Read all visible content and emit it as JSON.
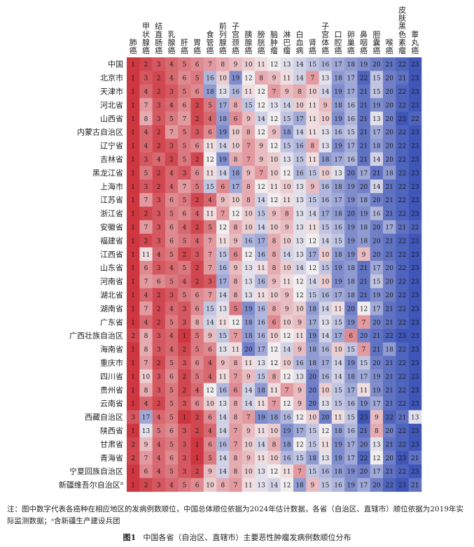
{
  "chart_data": {
    "type": "heatmap",
    "columns": [
      "肺癌",
      "甲状腺癌",
      "结直肠癌",
      "乳腺癌",
      "肝癌",
      "胃癌",
      "食管癌",
      "前列腺癌",
      "子宫颈癌",
      "胰腺癌",
      "膀胱癌",
      "脑肿瘤",
      "淋巴瘤",
      "白血病",
      "肾癌",
      "子宫体癌",
      "口腔癌",
      "卵巢癌",
      "鼻咽癌",
      "胆囊癌",
      "喉癌",
      "皮肤黑色素瘤",
      "睾丸癌"
    ],
    "rows": [
      "中国",
      "北京市",
      "天津市",
      "河北省",
      "山西省",
      "内蒙古自治区",
      "辽宁省",
      "吉林省",
      "黑龙江省",
      "上海市",
      "江苏省",
      "浙江省",
      "安徽省",
      "福建省",
      "江西省",
      "山东省",
      "河南省",
      "湖北省",
      "湖南省",
      "广东省",
      "广西壮族自治区",
      "海南省",
      "重庆市",
      "四川省",
      "贵州省",
      "云南省",
      "西藏自治区",
      "陕西省",
      "甘肃省",
      "青海省",
      "宁夏回族自治区",
      "新疆维吾尔自治区"
    ],
    "row_superscripts": {
      "新疆维吾尔自治区": "a"
    },
    "values": [
      [
        1,
        2,
        3,
        4,
        5,
        6,
        7,
        8,
        9,
        10,
        11,
        12,
        13,
        14,
        15,
        16,
        17,
        18,
        19,
        20,
        21,
        22,
        23
      ],
      [
        1,
        3,
        2,
        4,
        6,
        5,
        16,
        10,
        19,
        12,
        8,
        9,
        11,
        14,
        7,
        13,
        18,
        17,
        22,
        15,
        20,
        21,
        23
      ],
      [
        1,
        4,
        2,
        3,
        5,
        6,
        18,
        13,
        16,
        11,
        12,
        7,
        9,
        8,
        10,
        14,
        19,
        17,
        21,
        15,
        20,
        22,
        23
      ],
      [
        1,
        7,
        3,
        4,
        6,
        2,
        5,
        17,
        8,
        15,
        12,
        13,
        14,
        10,
        11,
        9,
        18,
        16,
        21,
        19,
        20,
        22,
        23
      ],
      [
        1,
        8,
        3,
        5,
        7,
        2,
        4,
        18,
        6,
        9,
        14,
        12,
        15,
        17,
        11,
        10,
        19,
        16,
        21,
        13,
        20,
        23,
        22
      ],
      [
        1,
        4,
        2,
        7,
        5,
        3,
        6,
        19,
        10,
        8,
        12,
        9,
        18,
        14,
        11,
        13,
        16,
        15,
        21,
        17,
        20,
        22,
        23
      ],
      [
        1,
        4,
        2,
        3,
        5,
        6,
        11,
        14,
        10,
        7,
        9,
        12,
        15,
        16,
        8,
        13,
        19,
        17,
        21,
        18,
        20,
        22,
        23
      ],
      [
        1,
        3,
        4,
        2,
        5,
        2,
        12,
        19,
        8,
        7,
        9,
        10,
        13,
        15,
        11,
        18,
        17,
        16,
        21,
        14,
        20,
        22,
        23
      ],
      [
        1,
        5,
        2,
        4,
        3,
        6,
        11,
        14,
        18,
        9,
        7,
        10,
        12,
        16,
        15,
        10,
        13,
        20,
        17,
        21,
        18,
        22,
        23
      ],
      [
        1,
        3,
        2,
        4,
        7,
        5,
        15,
        6,
        17,
        8,
        12,
        11,
        10,
        13,
        9,
        16,
        18,
        19,
        20,
        14,
        21,
        22,
        23
      ],
      [
        1,
        7,
        3,
        6,
        5,
        2,
        4,
        9,
        10,
        8,
        14,
        12,
        11,
        13,
        15,
        16,
        17,
        19,
        18,
        20,
        21,
        22,
        23
      ],
      [
        1,
        2,
        3,
        5,
        6,
        4,
        11,
        7,
        12,
        10,
        15,
        9,
        8,
        13,
        14,
        17,
        18,
        20,
        19,
        16,
        21,
        22,
        23
      ],
      [
        1,
        7,
        3,
        6,
        4,
        2,
        5,
        12,
        8,
        10,
        14,
        10,
        9,
        13,
        11,
        15,
        16,
        19,
        18,
        20,
        17,
        21,
        22
      ],
      [
        1,
        2,
        3,
        6,
        5,
        4,
        7,
        11,
        9,
        16,
        17,
        8,
        10,
        13,
        12,
        14,
        15,
        19,
        18,
        20,
        21,
        22,
        23
      ],
      [
        1,
        11,
        4,
        5,
        2,
        3,
        7,
        15,
        6,
        12,
        16,
        8,
        14,
        13,
        17,
        10,
        18,
        19,
        9,
        20,
        21,
        22,
        23
      ],
      [
        1,
        6,
        3,
        4,
        5,
        2,
        7,
        16,
        9,
        13,
        11,
        8,
        10,
        14,
        12,
        15,
        19,
        18,
        21,
        17,
        20,
        22,
        23
      ],
      [
        1,
        7,
        6,
        5,
        4,
        2,
        3,
        17,
        8,
        13,
        16,
        9,
        11,
        12,
        14,
        10,
        19,
        18,
        21,
        15,
        20,
        22,
        23
      ],
      [
        1,
        4,
        2,
        3,
        5,
        6,
        7,
        14,
        8,
        13,
        11,
        10,
        9,
        12,
        15,
        16,
        17,
        18,
        21,
        19,
        20,
        22,
        23
      ],
      [
        1,
        7,
        2,
        4,
        3,
        6,
        15,
        13,
        5,
        19,
        16,
        8,
        9,
        10,
        18,
        14,
        11,
        20,
        12,
        17,
        21,
        22,
        23
      ],
      [
        1,
        4,
        2,
        5,
        3,
        8,
        14,
        11,
        12,
        18,
        16,
        6,
        10,
        9,
        17,
        13,
        15,
        19,
        7,
        20,
        21,
        22,
        23
      ],
      [
        2,
        8,
        3,
        4,
        1,
        5,
        9,
        15,
        7,
        18,
        16,
        10,
        12,
        11,
        19,
        14,
        17,
        6,
        20,
        21,
        22,
        23,
        23
      ],
      [
        1,
        8,
        3,
        4,
        2,
        5,
        6,
        13,
        11,
        20,
        17,
        12,
        14,
        9,
        18,
        16,
        10,
        15,
        7,
        21,
        18,
        22,
        23
      ],
      [
        1,
        7,
        2,
        5,
        3,
        6,
        4,
        9,
        8,
        11,
        13,
        12,
        10,
        16,
        18,
        17,
        14,
        19,
        15,
        20,
        21,
        22,
        23
      ],
      [
        1,
        10,
        3,
        6,
        2,
        5,
        4,
        11,
        7,
        9,
        15,
        8,
        12,
        13,
        20,
        16,
        14,
        18,
        17,
        19,
        21,
        22,
        23
      ],
      [
        1,
        8,
        3,
        5,
        2,
        4,
        12,
        16,
        6,
        14,
        18,
        11,
        7,
        9,
        20,
        10,
        15,
        17,
        11,
        19,
        21,
        22,
        23
      ],
      [
        1,
        4,
        2,
        5,
        3,
        6,
        10,
        13,
        8,
        14,
        11,
        7,
        12,
        9,
        20,
        13,
        15,
        16,
        19,
        17,
        21,
        22,
        23
      ],
      [
        3,
        17,
        4,
        5,
        1,
        2,
        6,
        14,
        8,
        7,
        19,
        18,
        16,
        12,
        10,
        20,
        11,
        15,
        23,
        9,
        22,
        21,
        13
      ],
      [
        1,
        13,
        5,
        6,
        3,
        2,
        4,
        14,
        7,
        9,
        11,
        10,
        19,
        17,
        15,
        12,
        18,
        16,
        21,
        8,
        20,
        22,
        23
      ],
      [
        2,
        9,
        4,
        5,
        3,
        1,
        6,
        16,
        7,
        10,
        14,
        8,
        18,
        12,
        15,
        11,
        19,
        17,
        20,
        13,
        21,
        22,
        23
      ],
      [
        2,
        7,
        4,
        6,
        3,
        1,
        5,
        14,
        8,
        9,
        11,
        10,
        16,
        15,
        18,
        13,
        19,
        17,
        22,
        12,
        20,
        23,
        21
      ],
      [
        1,
        6,
        4,
        5,
        3,
        2,
        9,
        14,
        8,
        10,
        13,
        12,
        11,
        7,
        15,
        16,
        18,
        19,
        20,
        17,
        21,
        22,
        23
      ],
      [
        1,
        2,
        3,
        4,
        5,
        6,
        10,
        8,
        7,
        11,
        13,
        14,
        12,
        18,
        9,
        15,
        16,
        19,
        17,
        20,
        22,
        23,
        21
      ]
    ]
  },
  "note": "注：图中数字代表各癌种在相应地区的发病例数顺位，中国总体顺位依据为2024年估计数据，各省（自治区、直辖市）顺位依据为2019年实际监测数据；ᵃ含新疆生产建设兵团",
  "caption_label": "图1",
  "caption_text": "中国各省（自治区、直辖市）主要恶性肿瘤发病例数顺位分布"
}
